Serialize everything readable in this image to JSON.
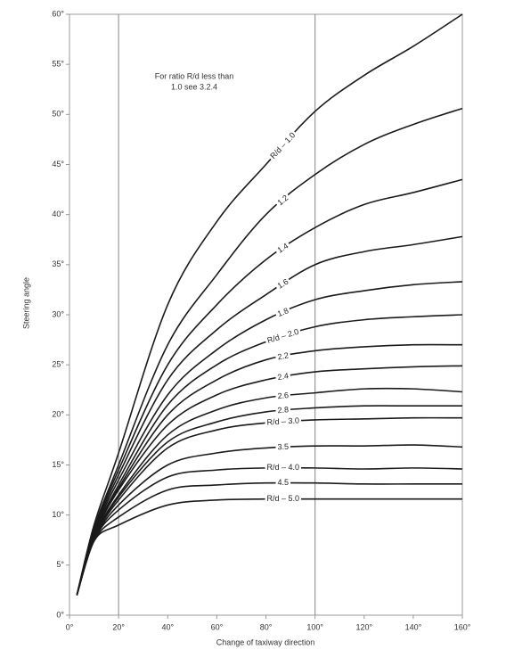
{
  "chart_data": {
    "type": "line",
    "x_label": "Change of taxiway direction",
    "y_label": "Steering angle",
    "annotation": [
      "For ratio R/d less than",
      "1.0 see 3.2.4"
    ],
    "line_color": "#1a1a1a",
    "frame_color": "#999999",
    "vgrid": [
      20,
      100
    ],
    "xlim": [
      0,
      160
    ],
    "ylim": [
      0,
      60
    ],
    "xticks": [
      {
        "value": 0,
        "label": "0°"
      },
      {
        "value": 20,
        "label": "20°"
      },
      {
        "value": 40,
        "label": "40°"
      },
      {
        "value": 60,
        "label": "60°"
      },
      {
        "value": 80,
        "label": "80°"
      },
      {
        "value": 100,
        "label": "100°"
      },
      {
        "value": 120,
        "label": "120°"
      },
      {
        "value": 140,
        "label": "140°"
      },
      {
        "value": 160,
        "label": "160°"
      }
    ],
    "yticks": [
      {
        "value": 0,
        "label": "0°"
      },
      {
        "value": 5,
        "label": "5°"
      },
      {
        "value": 10,
        "label": "10°"
      },
      {
        "value": 15,
        "label": "15°"
      },
      {
        "value": 20,
        "label": "20°"
      },
      {
        "value": 25,
        "label": "25°"
      },
      {
        "value": 30,
        "label": "30°"
      },
      {
        "value": 35,
        "label": "35°"
      },
      {
        "value": 40,
        "label": "40°"
      },
      {
        "value": 45,
        "label": "45°"
      },
      {
        "value": 50,
        "label": "50°"
      },
      {
        "value": 55,
        "label": "55°"
      },
      {
        "value": 60,
        "label": "60°"
      }
    ],
    "x": [
      3,
      10,
      20,
      40,
      60,
      80,
      100,
      120,
      140,
      160
    ],
    "series": [
      {
        "name": "R/d – 1.0",
        "values": [
          2,
          9,
          16.2,
          31,
          39.3,
          45,
          50.3,
          53.9,
          56.8,
          60
        ]
      },
      {
        "name": "1.2",
        "values": [
          2,
          8.7,
          15,
          27,
          34,
          40,
          44,
          47,
          49,
          50.6
        ]
      },
      {
        "name": "1.4",
        "values": [
          2,
          8.5,
          14.5,
          25,
          31,
          35.5,
          38.7,
          41,
          42.2,
          43.5
        ]
      },
      {
        "name": "1.6",
        "values": [
          2,
          8.3,
          14,
          23.5,
          28.5,
          32,
          35,
          36.3,
          37,
          37.8
        ]
      },
      {
        "name": "1.8",
        "values": [
          2,
          8.1,
          13.5,
          22,
          26.5,
          29.5,
          31.5,
          32.4,
          33,
          33.3
        ]
      },
      {
        "name": "R/d – 2.0",
        "values": [
          2,
          8,
          13,
          21,
          25,
          27.3,
          28.8,
          29.5,
          29.8,
          30
        ]
      },
      {
        "name": "2.2",
        "values": [
          2,
          7.9,
          12.7,
          20,
          23.5,
          25.5,
          26.4,
          26.8,
          27,
          27
        ]
      },
      {
        "name": "2.4",
        "values": [
          2,
          7.8,
          12.5,
          19,
          22,
          23.5,
          24.3,
          24.6,
          24.8,
          24.9
        ]
      },
      {
        "name": "2.6",
        "values": [
          2,
          7.7,
          12,
          18,
          20.5,
          21.7,
          22.2,
          22.6,
          22.6,
          22.3
        ]
      },
      {
        "name": "2.8",
        "values": [
          2,
          7.6,
          11.8,
          17.3,
          19.3,
          20.3,
          20.7,
          20.9,
          20.9,
          20.9
        ]
      },
      {
        "name": "R/d – 3.0",
        "values": [
          2,
          7.6,
          11.5,
          16.7,
          18.5,
          19.2,
          19.5,
          19.6,
          19.7,
          19.7
        ]
      },
      {
        "name": "3.5",
        "values": [
          2,
          7.5,
          11,
          15,
          16.2,
          16.7,
          16.9,
          16.9,
          17,
          16.8
        ]
      },
      {
        "name": "R/d – 4.0",
        "values": [
          2,
          7.5,
          10.5,
          13.8,
          14.5,
          14.7,
          14.7,
          14.6,
          14.7,
          14.6
        ]
      },
      {
        "name": "4.5",
        "values": [
          2,
          7.4,
          9.8,
          12.5,
          13,
          13.2,
          13.2,
          13.1,
          13.1,
          13.1
        ]
      },
      {
        "name": "R/d – 5.0",
        "values": [
          2,
          7.4,
          9,
          11,
          11.5,
          11.6,
          11.6,
          11.6,
          11.6,
          11.6
        ]
      }
    ]
  }
}
